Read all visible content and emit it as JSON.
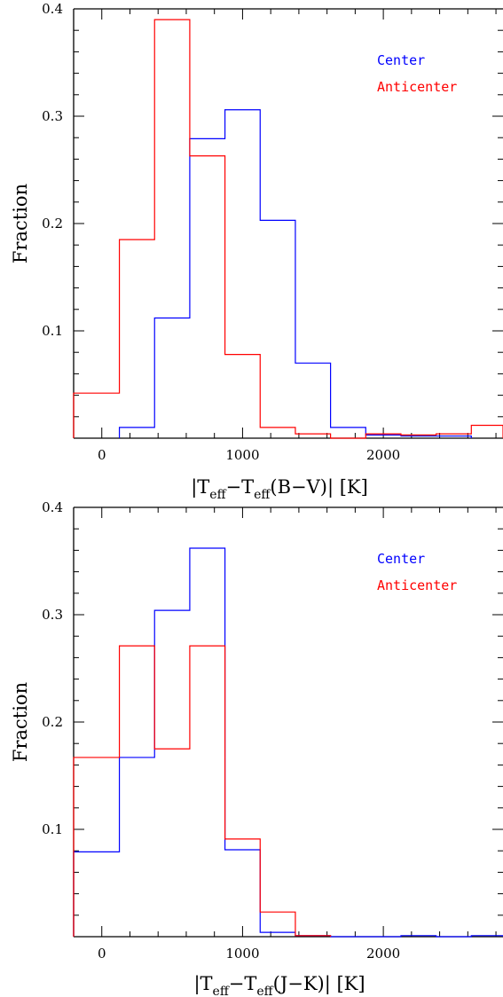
{
  "chart_data": [
    {
      "type": "histogram",
      "xlabel": "|T_eff − T_eff(B−V)| [K]",
      "xlabel_parts": {
        "open": "|T",
        "sub1": "eff",
        "mid": "−T",
        "sub2": "eff",
        "close": "(B−V)|  [K]"
      },
      "ylabel": "Fraction",
      "xlim": [
        -200,
        2850
      ],
      "ylim": [
        0,
        0.4
      ],
      "x_ticks": [
        0,
        1000,
        2000
      ],
      "x_tick_labels": [
        "0",
        "1000",
        "2000"
      ],
      "y_ticks": [
        0.1,
        0.2,
        0.3,
        0.4
      ],
      "y_tick_labels": [
        "0.1",
        "0.2",
        "0.3",
        "0.4"
      ],
      "legend_position": "top-right",
      "series": [
        {
          "name": "Center",
          "color": "#0000ff",
          "bins": [
            {
              "x0": 125,
              "x1": 375,
              "value": 0.01
            },
            {
              "x0": 375,
              "x1": 625,
              "value": 0.112
            },
            {
              "x0": 625,
              "x1": 875,
              "value": 0.279
            },
            {
              "x0": 875,
              "x1": 1125,
              "value": 0.306
            },
            {
              "x0": 1125,
              "x1": 1375,
              "value": 0.203
            },
            {
              "x0": 1375,
              "x1": 1625,
              "value": 0.07
            },
            {
              "x0": 1625,
              "x1": 1875,
              "value": 0.01
            },
            {
              "x0": 1875,
              "x1": 2125,
              "value": 0.003
            },
            {
              "x0": 2125,
              "x1": 2375,
              "value": 0.002
            },
            {
              "x0": 2375,
              "x1": 2625,
              "value": 0.002
            }
          ]
        },
        {
          "name": "Anticenter",
          "color": "#ff0000",
          "bins": [
            {
              "x0": -200,
              "x1": 125,
              "value": 0.042
            },
            {
              "x0": 125,
              "x1": 375,
              "value": 0.185
            },
            {
              "x0": 375,
              "x1": 625,
              "value": 0.39
            },
            {
              "x0": 625,
              "x1": 875,
              "value": 0.263
            },
            {
              "x0": 875,
              "x1": 1125,
              "value": 0.078
            },
            {
              "x0": 1125,
              "x1": 1375,
              "value": 0.01
            },
            {
              "x0": 1375,
              "x1": 1625,
              "value": 0.004
            },
            {
              "x0": 1625,
              "x1": 1875,
              "value": 0.0
            },
            {
              "x0": 1875,
              "x1": 2125,
              "value": 0.004
            },
            {
              "x0": 2125,
              "x1": 2375,
              "value": 0.003
            },
            {
              "x0": 2375,
              "x1": 2625,
              "value": 0.004
            },
            {
              "x0": 2625,
              "x1": 2850,
              "value": 0.012
            }
          ]
        }
      ]
    },
    {
      "type": "histogram",
      "xlabel": "|T_eff − T_eff(J−K)| [K]",
      "xlabel_parts": {
        "open": "|T",
        "sub1": "eff",
        "mid": "−T",
        "sub2": "eff",
        "close": "(J−K)|  [K]"
      },
      "ylabel": "Fraction",
      "xlim": [
        -200,
        2850
      ],
      "ylim": [
        0,
        0.4
      ],
      "x_ticks": [
        0,
        1000,
        2000
      ],
      "x_tick_labels": [
        "0",
        "1000",
        "2000"
      ],
      "y_ticks": [
        0.1,
        0.2,
        0.3,
        0.4
      ],
      "y_tick_labels": [
        "0.1",
        "0.2",
        "0.3",
        "0.4"
      ],
      "legend_position": "top-right",
      "series": [
        {
          "name": "Center",
          "color": "#0000ff",
          "bins": [
            {
              "x0": -200,
              "x1": 125,
              "value": 0.079
            },
            {
              "x0": 125,
              "x1": 375,
              "value": 0.167
            },
            {
              "x0": 375,
              "x1": 625,
              "value": 0.304
            },
            {
              "x0": 625,
              "x1": 875,
              "value": 0.362
            },
            {
              "x0": 875,
              "x1": 1125,
              "value": 0.081
            },
            {
              "x0": 1125,
              "x1": 1375,
              "value": 0.004
            },
            {
              "x0": 1375,
              "x1": 1625,
              "value": 0.001
            },
            {
              "x0": 1625,
              "x1": 2125,
              "value": 0.0
            },
            {
              "x0": 2125,
              "x1": 2375,
              "value": 0.001
            },
            {
              "x0": 2375,
              "x1": 2625,
              "value": 0.0
            },
            {
              "x0": 2625,
              "x1": 2850,
              "value": 0.001
            }
          ]
        },
        {
          "name": "Anticenter",
          "color": "#ff0000",
          "bins": [
            {
              "x0": -200,
              "x1": 125,
              "value": 0.167
            },
            {
              "x0": 125,
              "x1": 375,
              "value": 0.271
            },
            {
              "x0": 375,
              "x1": 625,
              "value": 0.175
            },
            {
              "x0": 625,
              "x1": 875,
              "value": 0.271
            },
            {
              "x0": 875,
              "x1": 1125,
              "value": 0.091
            },
            {
              "x0": 1125,
              "x1": 1375,
              "value": 0.023
            },
            {
              "x0": 1375,
              "x1": 1625,
              "value": 0.001
            }
          ]
        }
      ]
    }
  ]
}
